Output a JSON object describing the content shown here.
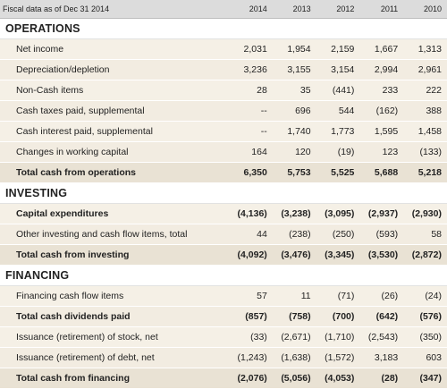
{
  "header": {
    "label": "Fiscal data as of Dec 31 2014",
    "years": [
      "2014",
      "2013",
      "2012",
      "2011",
      "2010"
    ]
  },
  "sections": [
    {
      "title": "OPERATIONS",
      "rows": [
        {
          "label": "Net income",
          "values": [
            "2,031",
            "1,954",
            "2,159",
            "1,667",
            "1,313"
          ],
          "bold": false,
          "total": false
        },
        {
          "label": "Depreciation/depletion",
          "values": [
            "3,236",
            "3,155",
            "3,154",
            "2,994",
            "2,961"
          ],
          "bold": false,
          "total": false
        },
        {
          "label": "Non-Cash items",
          "values": [
            "28",
            "35",
            "(441)",
            "233",
            "222"
          ],
          "bold": false,
          "total": false
        },
        {
          "label": "Cash taxes paid, supplemental",
          "values": [
            "--",
            "696",
            "544",
            "(162)",
            "388"
          ],
          "bold": false,
          "total": false
        },
        {
          "label": "Cash interest paid, supplemental",
          "values": [
            "--",
            "1,740",
            "1,773",
            "1,595",
            "1,458"
          ],
          "bold": false,
          "total": false
        },
        {
          "label": "Changes in working capital",
          "values": [
            "164",
            "120",
            "(19)",
            "123",
            "(133)"
          ],
          "bold": false,
          "total": false
        },
        {
          "label": "Total cash from operations",
          "values": [
            "6,350",
            "5,753",
            "5,525",
            "5,688",
            "5,218"
          ],
          "bold": true,
          "total": true
        }
      ]
    },
    {
      "title": "INVESTING",
      "rows": [
        {
          "label": "Capital expenditures",
          "values": [
            "(4,136)",
            "(3,238)",
            "(3,095)",
            "(2,937)",
            "(2,930)"
          ],
          "bold": true,
          "total": false
        },
        {
          "label": "Other investing and cash flow items, total",
          "values": [
            "44",
            "(238)",
            "(250)",
            "(593)",
            "58"
          ],
          "bold": false,
          "total": false
        },
        {
          "label": "Total cash from investing",
          "values": [
            "(4,092)",
            "(3,476)",
            "(3,345)",
            "(3,530)",
            "(2,872)"
          ],
          "bold": true,
          "total": true
        }
      ]
    },
    {
      "title": "FINANCING",
      "rows": [
        {
          "label": "Financing cash flow items",
          "values": [
            "57",
            "11",
            "(71)",
            "(26)",
            "(24)"
          ],
          "bold": false,
          "total": false
        },
        {
          "label": "Total cash dividends paid",
          "values": [
            "(857)",
            "(758)",
            "(700)",
            "(642)",
            "(576)"
          ],
          "bold": true,
          "total": false
        },
        {
          "label": "Issuance (retirement) of stock, net",
          "values": [
            "(33)",
            "(2,671)",
            "(1,710)",
            "(2,543)",
            "(350)"
          ],
          "bold": false,
          "total": false
        },
        {
          "label": "Issuance (retirement) of debt, net",
          "values": [
            "(1,243)",
            "(1,638)",
            "(1,572)",
            "3,183",
            "603"
          ],
          "bold": false,
          "total": false
        },
        {
          "label": "Total cash from financing",
          "values": [
            "(2,076)",
            "(5,056)",
            "(4,053)",
            "(28)",
            "(347)"
          ],
          "bold": true,
          "total": true
        }
      ]
    }
  ]
}
